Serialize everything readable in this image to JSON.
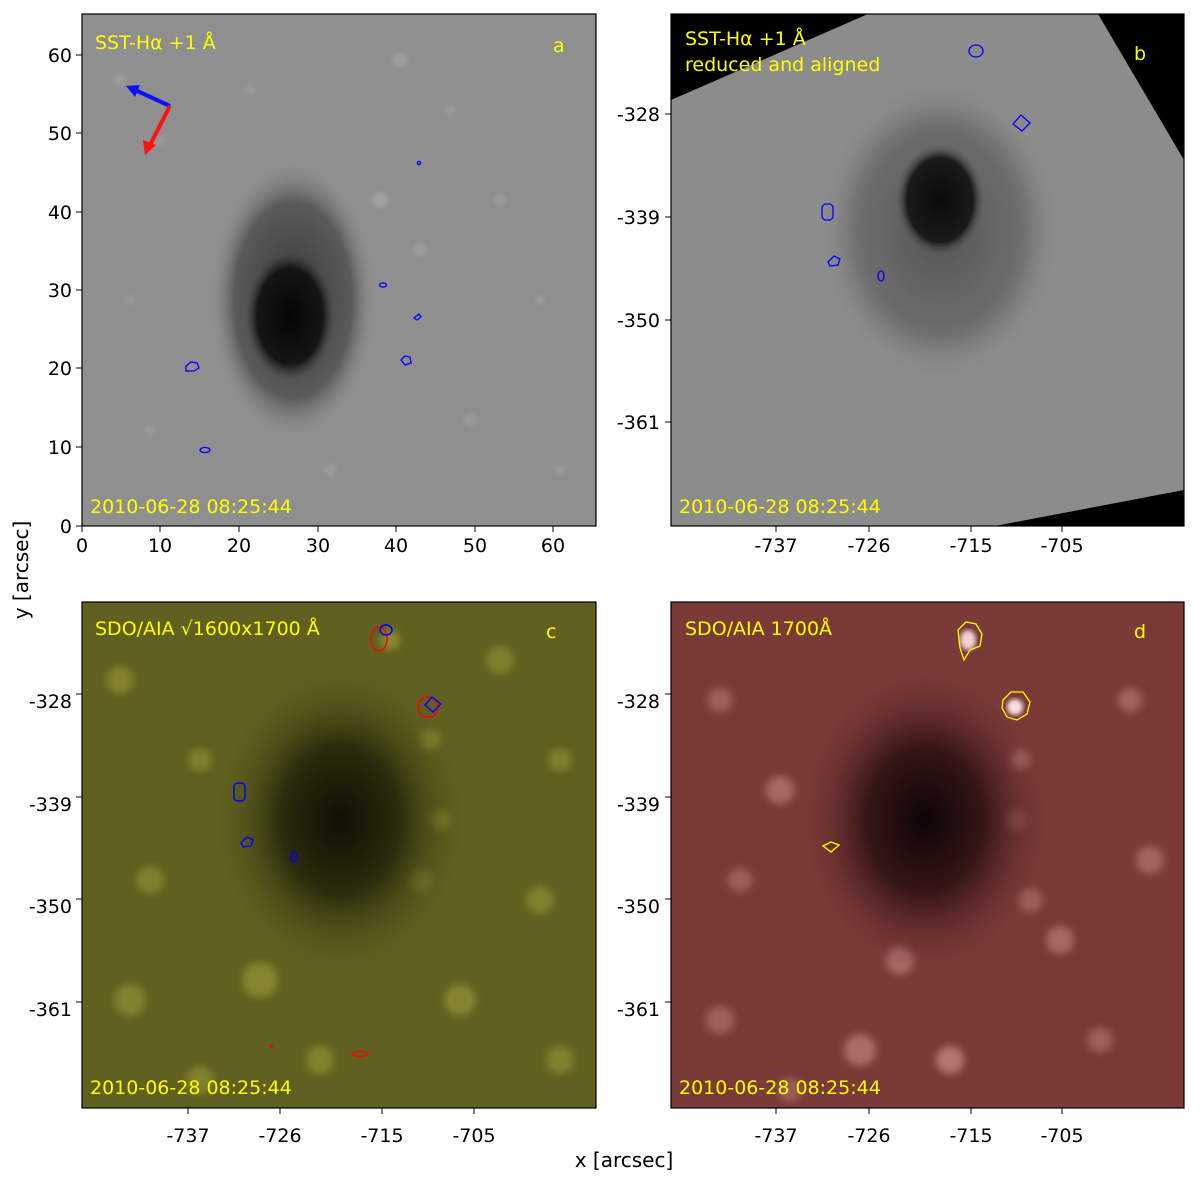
{
  "figure": {
    "xlabel": "x [arcsec]",
    "ylabel": "y [arcsec]",
    "annotation_color": "#ffff00",
    "contour_colors": {
      "blue": "#0000ff",
      "red": "#ff0000",
      "yellow": "#ffff00"
    },
    "arrow_colors": {
      "blue": "#1010ff",
      "red": "#ff1010"
    }
  },
  "panels": {
    "a": {
      "letter": "a",
      "title": "SST-Hα +1 Å",
      "timestamp": "2010-06-28 08:25:44",
      "xticks": [
        "0",
        "10",
        "20",
        "30",
        "40",
        "50",
        "60"
      ],
      "yticks": [
        "0",
        "10",
        "20",
        "30",
        "40",
        "50",
        "60"
      ],
      "background": "#8f8f8f"
    },
    "b": {
      "letter": "b",
      "title_line1": "SST-Hα +1 Å",
      "title_line2": "reduced and aligned",
      "timestamp": "2010-06-28 08:25:44",
      "xticks": [
        "-737",
        "-726",
        "-715",
        "-705"
      ],
      "yticks": [
        "-328",
        "-339",
        "-350",
        "-361"
      ],
      "background": "#8c8c8c"
    },
    "c": {
      "letter": "c",
      "title": "SDO/AIA √1600x1700 Å",
      "timestamp": "2010-06-28 08:25:44",
      "xticks": [
        "-737",
        "-726",
        "-715",
        "-705"
      ],
      "yticks": [
        "-328",
        "-339",
        "-350",
        "-361"
      ],
      "background": "#606020"
    },
    "d": {
      "letter": "d",
      "title": "SDO/AIA 1700Å",
      "timestamp": "2010-06-28 08:25:44",
      "xticks": [
        "-737",
        "-726",
        "-715",
        "-705"
      ],
      "yticks": [
        "-328",
        "-339",
        "-350",
        "-361"
      ],
      "background": "#7a3a38"
    }
  }
}
